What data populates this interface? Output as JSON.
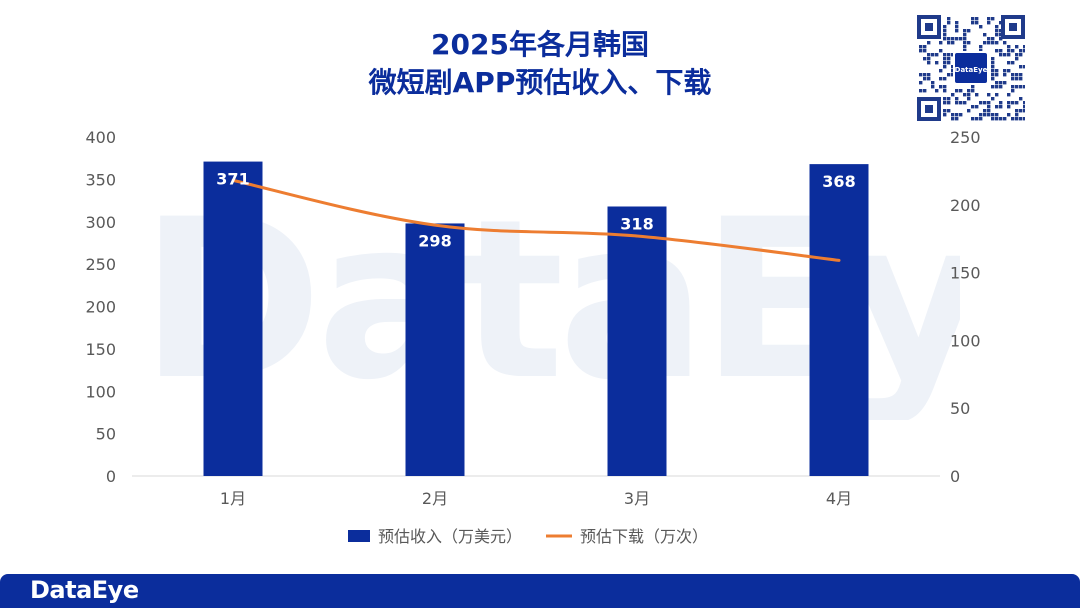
{
  "title_line1": "2025年各月韩国",
  "title_line2": "微短剧APP预估收入、下载",
  "watermark_text": "DataEye",
  "qr_label": "DataEye",
  "footer_logo": "DataEye",
  "colors": {
    "bar": "#0b2d9c",
    "line": "#ed7d31",
    "title": "#0b2d9c",
    "axis_text": "#595959",
    "footer": "#0b2d9c"
  },
  "chart_data": {
    "type": "bar",
    "categories": [
      "1月",
      "2月",
      "3月",
      "4月"
    ],
    "series": [
      {
        "name": "预估收入（万美元）",
        "type": "bar",
        "axis": "left",
        "values": [
          371,
          298,
          318,
          368
        ],
        "data_labels": [
          "371",
          "298",
          "318",
          "368"
        ]
      },
      {
        "name": "预估下载（万次）",
        "type": "line",
        "axis": "right",
        "values": [
          218,
          185,
          177,
          159
        ]
      }
    ],
    "left_axis": {
      "ylim": [
        0,
        400
      ],
      "ticks": [
        "0",
        "50",
        "100",
        "150",
        "200",
        "250",
        "300",
        "350",
        "400"
      ]
    },
    "right_axis": {
      "ylim": [
        0,
        250
      ],
      "ticks": [
        "0",
        "50",
        "100",
        "150",
        "200",
        "250"
      ]
    },
    "grid": false,
    "legend_position": "bottom"
  }
}
